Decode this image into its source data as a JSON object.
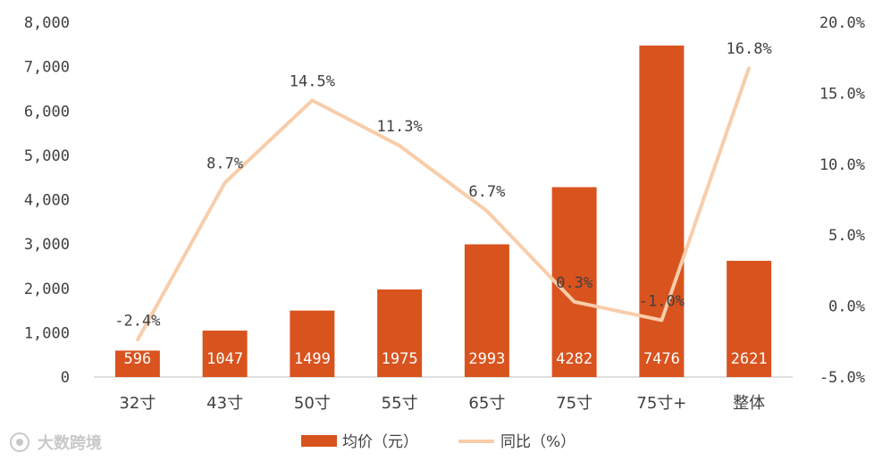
{
  "chart_data": {
    "type": "bar",
    "categories": [
      "32寸",
      "43寸",
      "50寸",
      "55寸",
      "65寸",
      "75寸",
      "75寸+",
      "整体"
    ],
    "series": [
      {
        "name": "均价（元）",
        "type": "bar",
        "axis": "left",
        "color": "#d9531e",
        "values": [
          596,
          1047,
          1499,
          1975,
          2993,
          4282,
          7476,
          2621
        ],
        "labels": [
          "596",
          "1047",
          "1499",
          "1975",
          "2993",
          "4282",
          "7476",
          "2621"
        ]
      },
      {
        "name": "同比（%）",
        "type": "line",
        "axis": "right",
        "color": "#f8cdaa",
        "values": [
          -2.4,
          8.7,
          14.5,
          11.3,
          6.7,
          0.3,
          -1.0,
          16.8
        ],
        "labels": [
          "-2.4%",
          "8.7%",
          "14.5%",
          "11.3%",
          "6.7%",
          "0.3%",
          "-1.0%",
          "16.8%"
        ]
      }
    ],
    "y_left": {
      "lim": [
        0,
        8000
      ],
      "ticks": [
        0,
        1000,
        2000,
        3000,
        4000,
        5000,
        6000,
        7000,
        8000
      ],
      "tick_labels": [
        "0",
        "1,000",
        "2,000",
        "3,000",
        "4,000",
        "5,000",
        "6,000",
        "7,000",
        "8,000"
      ]
    },
    "y_right": {
      "lim": [
        -5,
        20
      ],
      "ticks": [
        -5,
        0,
        5,
        10,
        15,
        20
      ],
      "tick_labels": [
        "-5.0%",
        "0.0%",
        "5.0%",
        "10.0%",
        "15.0%",
        "20.0%"
      ]
    },
    "grid": false,
    "legend_position": "bottom",
    "watermark": "大数跨境"
  }
}
